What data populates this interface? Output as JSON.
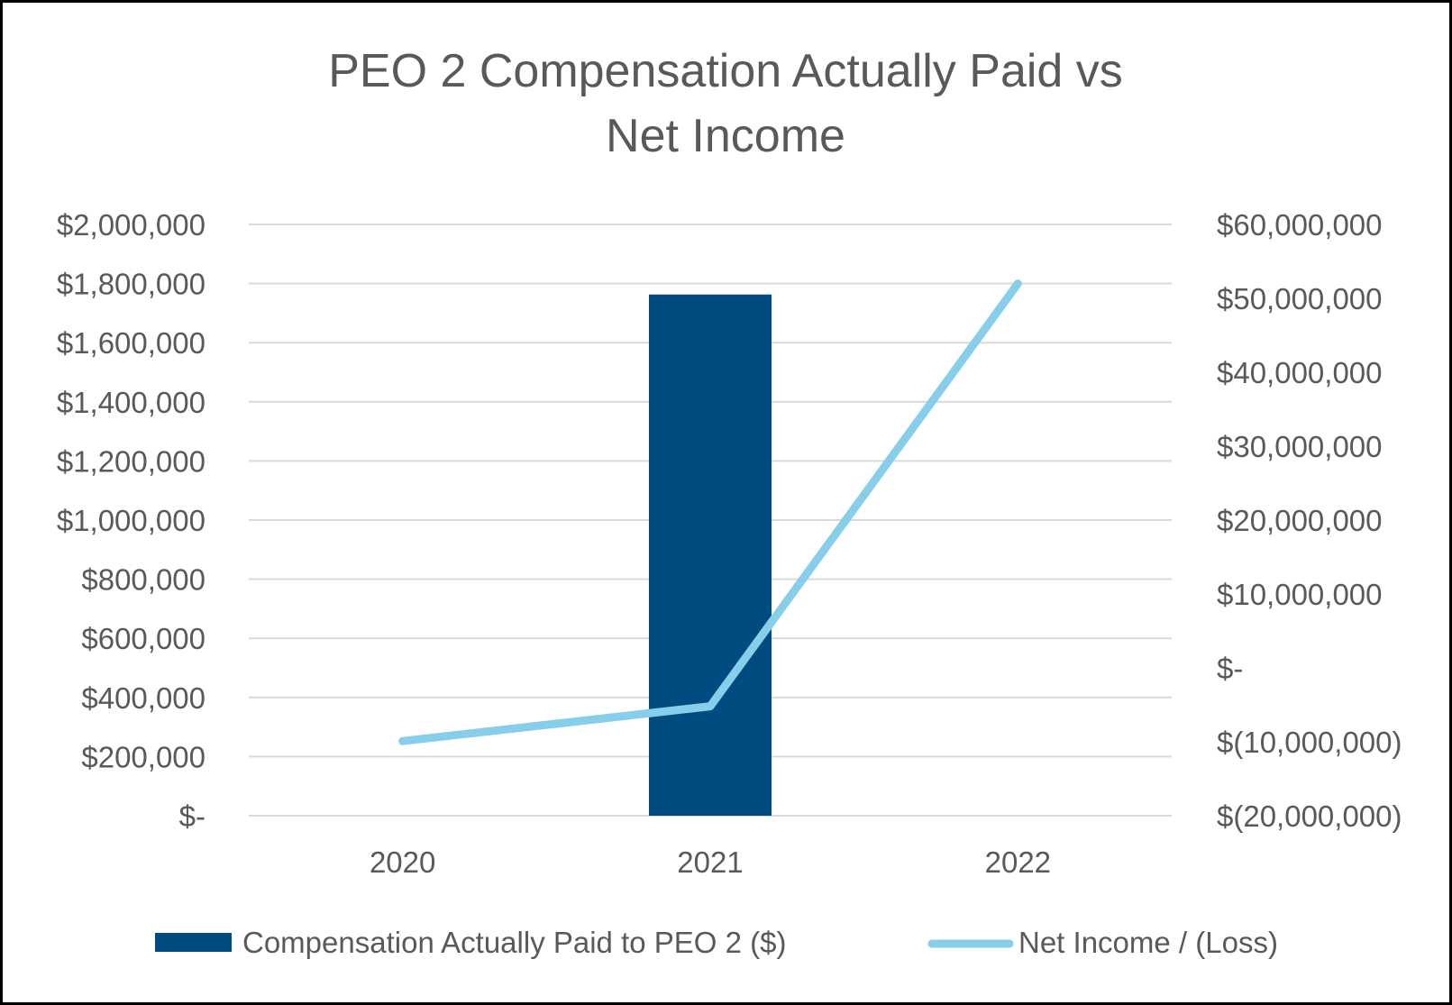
{
  "chart_data": {
    "type": "bar",
    "title_lines": [
      "PEO 2 Compensation Actually Paid vs",
      "Net Income"
    ],
    "categories": [
      "2020",
      "2021",
      "2022"
    ],
    "series": [
      {
        "name": "Compensation Actually Paid to PEO 2 ($)",
        "type": "bar",
        "axis": "left",
        "color": "#004C80",
        "values": [
          0,
          1763000,
          0
        ]
      },
      {
        "name": "Net Income / (Loss)",
        "type": "line",
        "axis": "right",
        "color": "#87CEEB",
        "values": [
          -9900000,
          -5200000,
          52000000
        ]
      }
    ],
    "left_axis": {
      "ylim": [
        0,
        2000000
      ],
      "ticks": [
        0,
        200000,
        400000,
        600000,
        800000,
        1000000,
        1200000,
        1400000,
        1600000,
        1800000,
        2000000
      ],
      "tick_labels": [
        "$-",
        "$200,000",
        "$400,000",
        "$600,000",
        "$800,000",
        "$1,000,000",
        "$1,200,000",
        "$1,400,000",
        "$1,600,000",
        "$1,800,000",
        "$2,000,000"
      ]
    },
    "right_axis": {
      "ylim": [
        -20000000,
        60000000
      ],
      "ticks": [
        -20000000,
        -10000000,
        0,
        10000000,
        20000000,
        30000000,
        40000000,
        50000000,
        60000000
      ],
      "tick_labels": [
        "$(20,000,000)",
        "$(10,000,000)",
        "$-",
        "$10,000,000",
        "$20,000,000",
        "$30,000,000",
        "$40,000,000",
        "$50,000,000",
        "$60,000,000"
      ]
    },
    "grid": true,
    "legend_position": "bottom"
  }
}
